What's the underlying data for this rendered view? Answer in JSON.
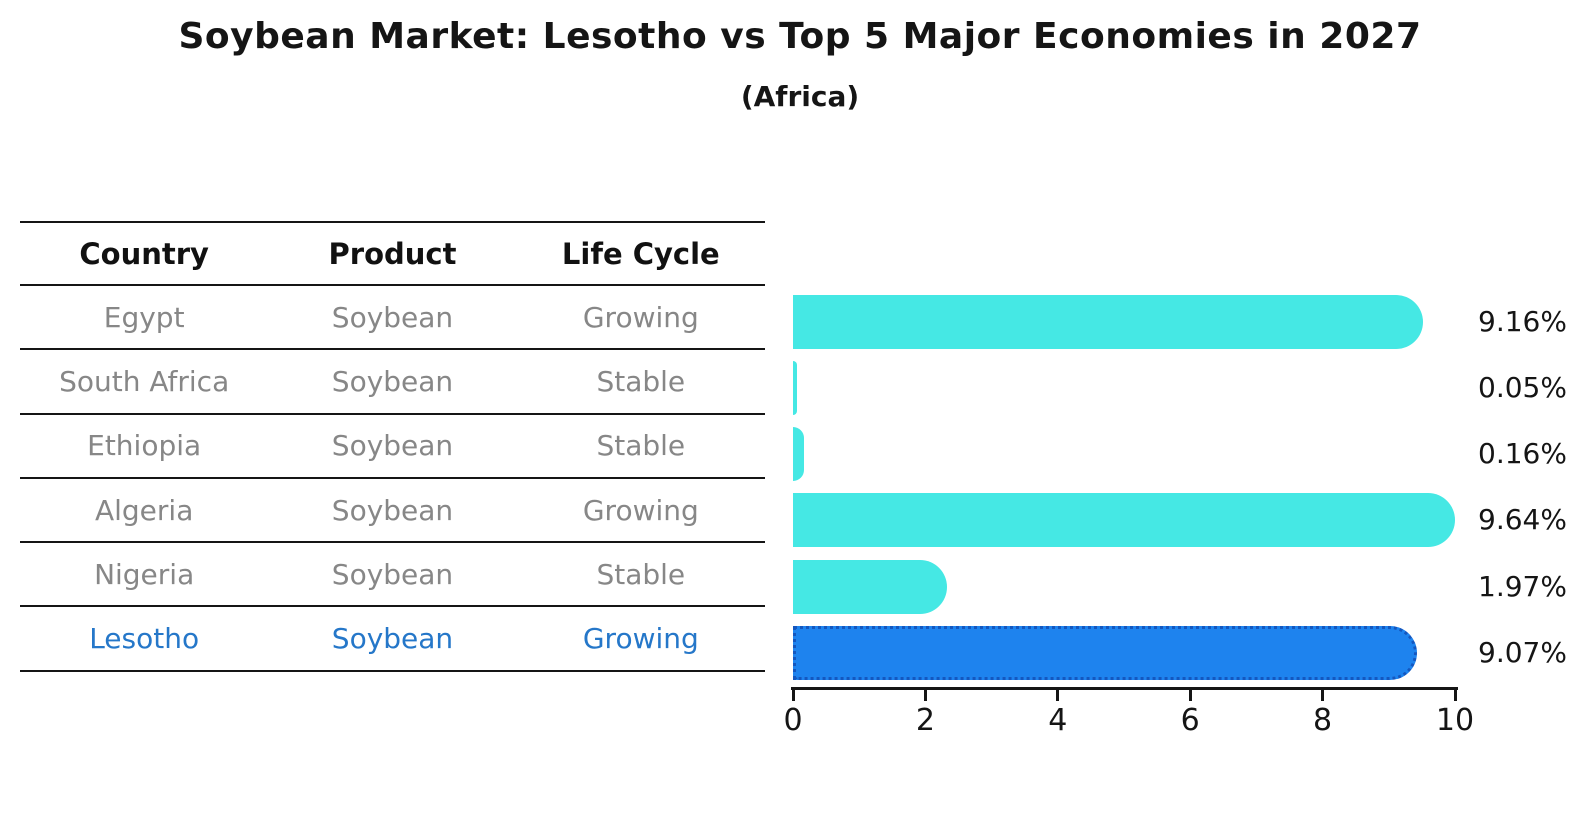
{
  "title": "Soybean Market: Lesotho vs Top 5 Major Economies in 2027",
  "subtitle": "(Africa)",
  "table": {
    "headers": {
      "country": "Country",
      "product": "Product",
      "life_cycle": "Life Cycle"
    },
    "rows": [
      {
        "country": "Egypt",
        "product": "Soybean",
        "life_cycle": "Growing"
      },
      {
        "country": "South Africa",
        "product": "Soybean",
        "life_cycle": "Stable"
      },
      {
        "country": "Ethiopia",
        "product": "Soybean",
        "life_cycle": "Stable"
      },
      {
        "country": "Algeria",
        "product": "Soybean",
        "life_cycle": "Growing"
      },
      {
        "country": "Nigeria",
        "product": "Soybean",
        "life_cycle": "Stable"
      },
      {
        "country": "Lesotho",
        "product": "Soybean",
        "life_cycle": "Growing"
      }
    ],
    "highlight_row": "Lesotho"
  },
  "chart_data": {
    "type": "bar",
    "orientation": "horizontal",
    "title": "Soybean Market: Lesotho vs Top 5 Major Economies in 2027",
    "subtitle": "(Africa)",
    "categories": [
      "Egypt",
      "South Africa",
      "Ethiopia",
      "Algeria",
      "Nigeria",
      "Lesotho"
    ],
    "values": [
      9.16,
      0.05,
      0.16,
      9.64,
      1.97,
      9.07
    ],
    "value_labels": [
      "9.16%",
      "0.05%",
      "0.16%",
      "9.64%",
      "1.97%",
      "9.07%"
    ],
    "xlim": [
      0,
      10
    ],
    "x_ticks": [
      0,
      2,
      4,
      6,
      8,
      10
    ],
    "x_tick_labels": [
      "0",
      "2",
      "4",
      "6",
      "8",
      "10"
    ],
    "grid": false,
    "legend": false,
    "highlight_index": 5,
    "bar_color": "#45E8E4",
    "highlight_color": "#1E83EE",
    "highlight_border_color": "#1457BF",
    "highlight_text_color": "#2577C9"
  }
}
